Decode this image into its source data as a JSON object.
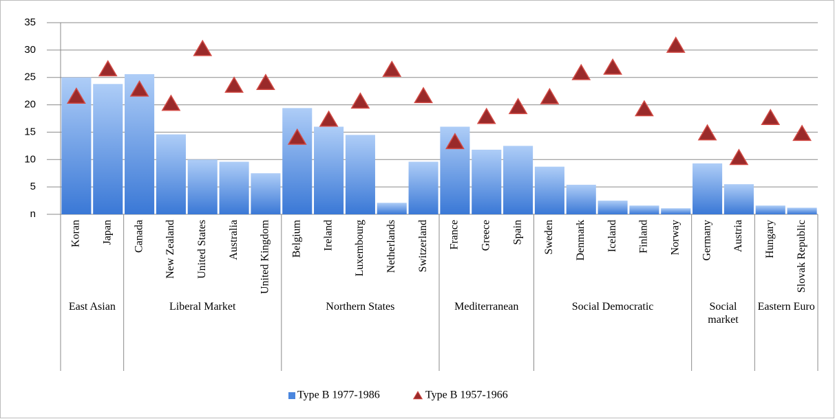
{
  "chart_data": {
    "type": "bar",
    "groups": [
      {
        "name": "East Asian",
        "categories": [
          "Koran",
          "Japan"
        ]
      },
      {
        "name": "Liberal Market",
        "categories": [
          "Canada",
          "New Zealand",
          "United States",
          "Australia",
          "United Kingdom"
        ]
      },
      {
        "name": "Northern States",
        "categories": [
          "Belgium",
          "Ireland",
          "Luxembourg",
          "Netherlands",
          "Switzerland"
        ]
      },
      {
        "name": "Mediterranean",
        "categories": [
          "France",
          "Greece",
          "Spain"
        ]
      },
      {
        "name": "Social Democratic",
        "categories": [
          "Sweden",
          "Denmark",
          "Iceland",
          "Finland",
          "Norway"
        ]
      },
      {
        "name": "Social market",
        "categories": [
          "Germany",
          "Austria"
        ]
      },
      {
        "name": "Eastern Euro",
        "categories": [
          "Hungary",
          "Slovak Republic"
        ]
      }
    ],
    "series": [
      {
        "name": "Type B 1977-1986",
        "type": "bar",
        "color": "#4a86de",
        "values": [
          25,
          23.8,
          25.6,
          14.6,
          10,
          9.6,
          7.5,
          19.4,
          16,
          14.5,
          2.1,
          9.6,
          16,
          11.8,
          12.5,
          8.7,
          5.4,
          2.5,
          1.6,
          1.1,
          9.3,
          5.5,
          1.6,
          1.2
        ]
      },
      {
        "name": "Type B 1957-1966",
        "type": "triangle",
        "color": "#9a2a2a",
        "values": [
          21.5,
          26.5,
          22.8,
          20.2,
          30.2,
          23.5,
          24,
          14,
          17.3,
          20.6,
          26.4,
          21.6,
          13.2,
          17.8,
          19.6,
          21.4,
          25.8,
          26.8,
          19.2,
          30.8,
          14.8,
          10.3,
          17.6,
          14.7
        ]
      }
    ],
    "ylim": [
      0,
      35
    ],
    "yticks": [
      {
        "value": 0,
        "label": "n"
      },
      5,
      10,
      15,
      20,
      25,
      30,
      35
    ],
    "grid": true,
    "legend": "bottom"
  }
}
